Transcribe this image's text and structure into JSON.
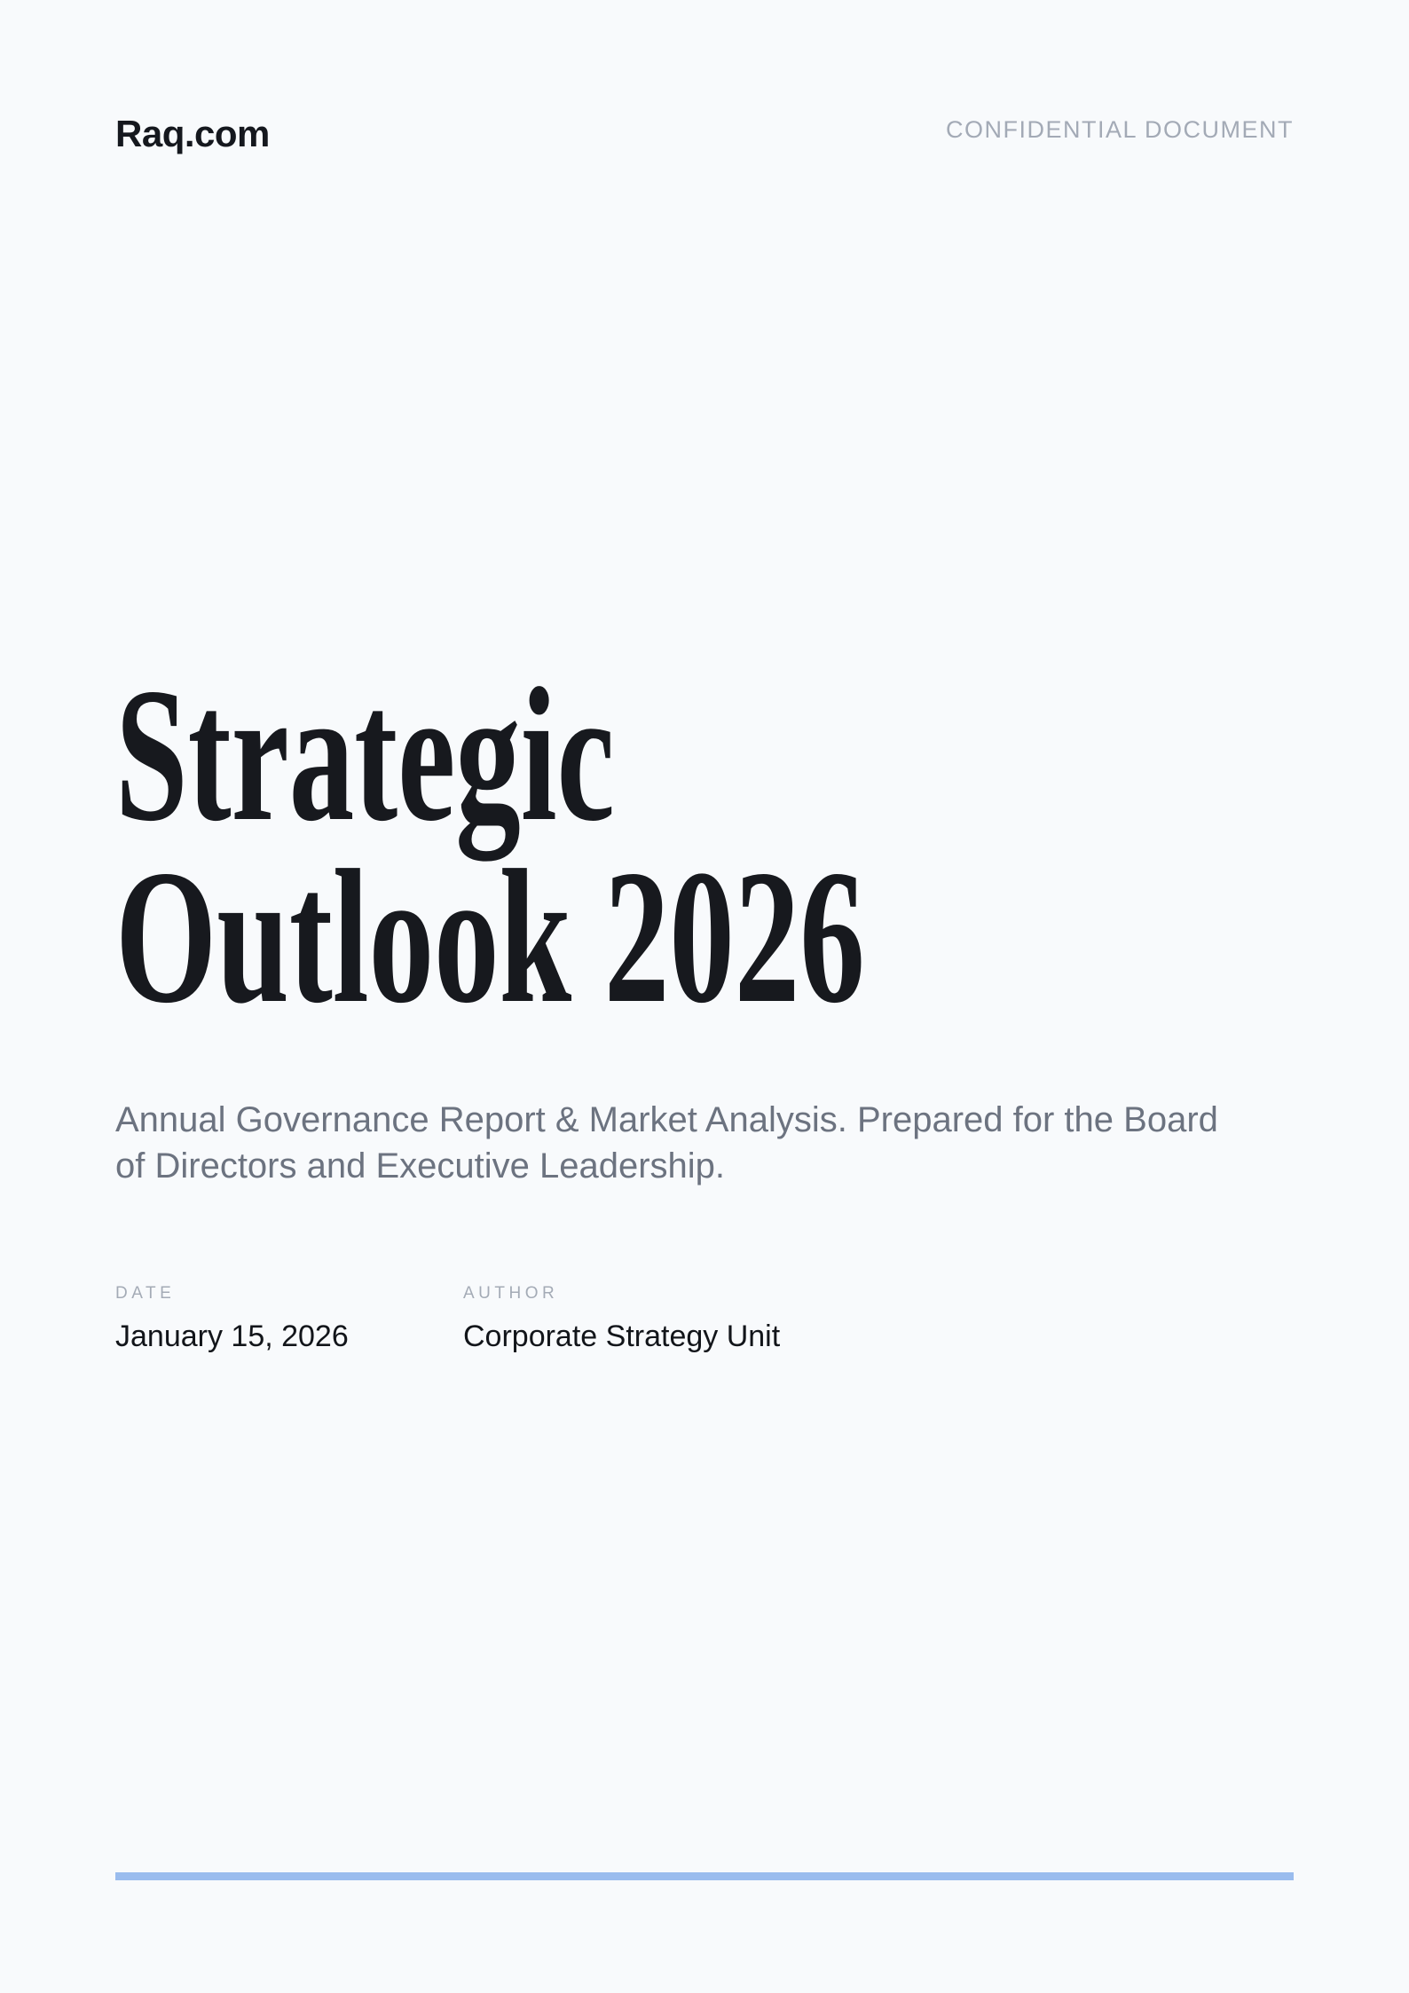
{
  "page": {
    "background_color": "#f8fafc",
    "accent_bar_color": "#9abcee",
    "title_color": "#17191e",
    "subtitle_color": "#6c7380"
  },
  "header": {
    "logo": "Raq.com",
    "badge": "CONFIDENTIAL DOCUMENT"
  },
  "title": {
    "full": "Strategic Outlook 2026",
    "line1": "Strategic",
    "line2": "Outlook 2026"
  },
  "subtitle": "Annual Governance Report & Market Analysis. Prepared for the Board of Directors and Executive Leadership.",
  "meta": {
    "date": {
      "label": "DATE",
      "value": "January 15, 2026"
    },
    "author": {
      "label": "AUTHOR",
      "value": "Corporate Strategy Unit"
    }
  }
}
